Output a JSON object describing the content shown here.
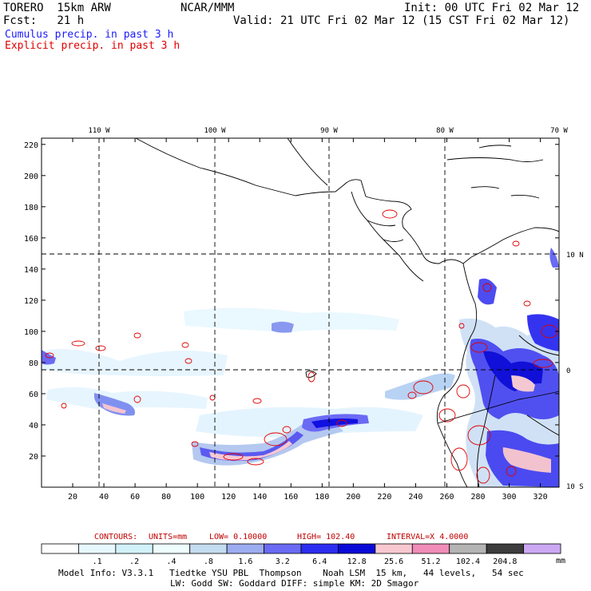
{
  "header": {
    "model": "TORERO  15km ARW",
    "center": "NCAR/MMM",
    "init": "Init: 00 UTC Fri 02 Mar 12",
    "fcst": "Fcst:   21 h",
    "valid": "Valid: 21 UTC Fri 02 Mar 12 (15 CST Fri 02 Mar 12)",
    "field1": "Cumulus precip. in past 3 h",
    "field2": "Explicit precip. in past 3 h",
    "field1_color": "#1a1aff",
    "field2_color": "#e00000"
  },
  "map": {
    "lon_labels": [
      "110 W",
      "100 W",
      "90 W",
      "80 W",
      "70 W"
    ],
    "lat_labels": [
      "10 N",
      "0",
      "10 S"
    ],
    "x_ticks": [
      "20",
      "40",
      "60",
      "80",
      "100",
      "120",
      "140",
      "160",
      "180",
      "200",
      "220",
      "240",
      "260",
      "280",
      "300",
      "320"
    ],
    "y_ticks": [
      "20",
      "40",
      "60",
      "80",
      "100",
      "120",
      "140",
      "160",
      "180",
      "200",
      "220"
    ],
    "x_range": [
      0,
      332
    ],
    "y_range": [
      0,
      224
    ]
  },
  "contours_info": {
    "label": "CONTOURS:",
    "units": "UNITS=mm",
    "low": "LOW= 0.10000",
    "high": "HIGH=  102.40",
    "interval": "INTERVAL=X  4.0000"
  },
  "colorbar": {
    "unit": "mm",
    "values": [
      ".1",
      ".2",
      ".4",
      ".8",
      "1.6",
      "3.2",
      "6.4",
      "12.8",
      "25.6",
      "51.2",
      "102.4",
      "204.8"
    ],
    "colors": [
      "#ffffff",
      "#e8f8ff",
      "#d2f2fa",
      "#eefefe",
      "#c4dcf0",
      "#9cacf0",
      "#6a6af4",
      "#2c2cf0",
      "#0a0ad8",
      "#f8c8d0",
      "#f08cb8",
      "#b4b4b4",
      "#3c3c3c",
      "#cca8f4"
    ]
  },
  "footer": {
    "line1": "Model Info: V3.3.1   Tiedtke YSU PBL  Thompson    Noah LSM  15 km,   44 levels,   54 sec",
    "line2": "LW: Godd SW: Goddard DIFF: simple KM: 2D Smagor"
  }
}
